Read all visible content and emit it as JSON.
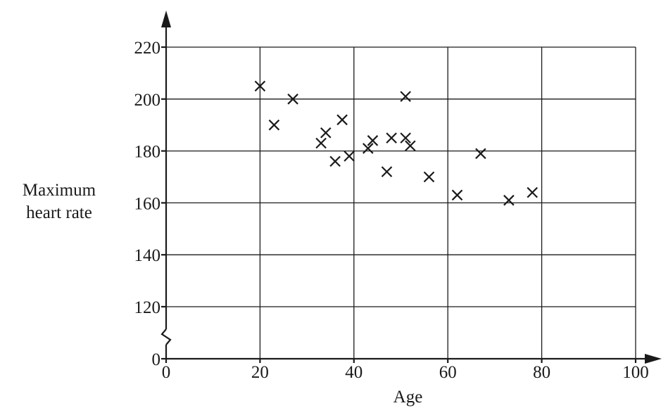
{
  "chart_data": {
    "type": "scatter",
    "title": "",
    "xlabel": "Age",
    "ylabel_lines": [
      "Maximum",
      "heart rate"
    ],
    "xlim": [
      0,
      100
    ],
    "ylim_break": [
      0,
      110
    ],
    "ylim": [
      110,
      220
    ],
    "x_ticks": [
      0,
      20,
      40,
      60,
      80,
      100
    ],
    "x_tick_labels": [
      "0",
      "20",
      "40",
      "60",
      "80",
      "100"
    ],
    "y_ticks": [
      0,
      120,
      140,
      160,
      180,
      200,
      220
    ],
    "y_tick_labels": [
      "0",
      "120",
      "140",
      "160",
      "180",
      "200",
      "220"
    ],
    "grid": true,
    "axis_break": "y",
    "marker": "x",
    "points": [
      {
        "x": 20,
        "y": 205
      },
      {
        "x": 23,
        "y": 190
      },
      {
        "x": 27,
        "y": 200
      },
      {
        "x": 33,
        "y": 183
      },
      {
        "x": 34,
        "y": 187
      },
      {
        "x": 36,
        "y": 176
      },
      {
        "x": 37.5,
        "y": 192
      },
      {
        "x": 39,
        "y": 178
      },
      {
        "x": 43,
        "y": 181
      },
      {
        "x": 44,
        "y": 184
      },
      {
        "x": 47,
        "y": 172
      },
      {
        "x": 48,
        "y": 185
      },
      {
        "x": 51,
        "y": 201
      },
      {
        "x": 51,
        "y": 185
      },
      {
        "x": 52,
        "y": 182
      },
      {
        "x": 56,
        "y": 170
      },
      {
        "x": 62,
        "y": 163
      },
      {
        "x": 67,
        "y": 179
      },
      {
        "x": 73,
        "y": 161
      },
      {
        "x": 78,
        "y": 164
      }
    ],
    "colors": {
      "ink": "#1a1a1a",
      "background": "#ffffff"
    }
  }
}
